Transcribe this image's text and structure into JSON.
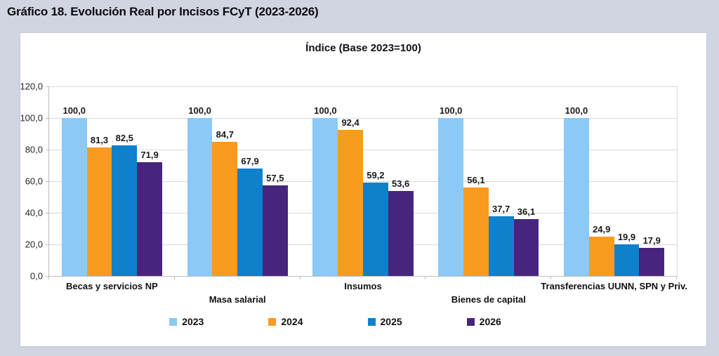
{
  "figure": {
    "title": "Gráfico 18. Evolución Real por Incisos FCyT (2023-2026)",
    "subtitle": "Índice (Base 2023=100)"
  },
  "chart_data": {
    "type": "bar",
    "title": "Índice (Base 2023=100)",
    "categories": [
      "Becas y servicios NP",
      "Masa salarial",
      "Insumos",
      "Bienes de capital",
      "Transferencias UUNN, SPN y Priv."
    ],
    "series": [
      {
        "name": "2023",
        "color": "#8BC9F6",
        "values": [
          100.0,
          100.0,
          100.0,
          100.0,
          100.0
        ],
        "labels": [
          "100,0",
          "100,0",
          "100,0",
          "100,0",
          "100,0"
        ]
      },
      {
        "name": "2024",
        "color": "#F99B1E",
        "values": [
          81.3,
          84.7,
          92.4,
          56.1,
          24.9
        ],
        "labels": [
          "81,3",
          "84,7",
          "92,4",
          "56,1",
          "24,9"
        ]
      },
      {
        "name": "2025",
        "color": "#0E80CC",
        "values": [
          82.5,
          67.9,
          59.2,
          37.7,
          19.9
        ],
        "labels": [
          "82,5",
          "67,9",
          "59,2",
          "37,7",
          "19,9"
        ]
      },
      {
        "name": "2026",
        "color": "#48257D",
        "values": [
          71.9,
          57.5,
          53.6,
          36.1,
          17.9
        ],
        "labels": [
          "71,9",
          "57,5",
          "53,6",
          "36,1",
          "17,9"
        ]
      }
    ],
    "y_axis": {
      "min": 0,
      "max": 120,
      "step": 20,
      "tick_labels": [
        "0,0",
        "20,0",
        "40,0",
        "60,0",
        "80,0",
        "100,0",
        "120,0"
      ]
    },
    "xlabel": "",
    "ylabel": "",
    "grid": true,
    "legend_position": "bottom",
    "decimal_separator": ","
  },
  "colors": {
    "page_background": "#D1D5E1",
    "chart_background": "#FFFFFF",
    "gridline": "#D9D9D9",
    "axis": "#BFBFBF",
    "text": "#1A1A1A"
  }
}
